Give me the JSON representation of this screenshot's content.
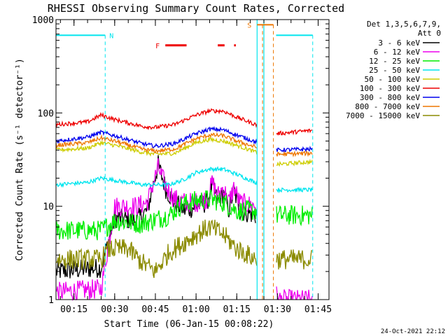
{
  "chart_data": {
    "type": "line",
    "title": "RHESSI Observing Summary Count Rates, Corrected",
    "xlabel": "Start Time (06-Jan-15 00:08:22)",
    "ylabel": "Corrected Count Rate (s⁻¹ detector⁻¹)",
    "y_scale": "log",
    "xlim": [
      "00:08:22",
      "01:49:00"
    ],
    "ylim": [
      1,
      1000
    ],
    "x_ticks": [
      "00:15",
      "00:30",
      "00:45",
      "01:00",
      "01:15",
      "01:30",
      "01:45"
    ],
    "y_ticks": [
      "1",
      "10",
      "100",
      "1000"
    ],
    "footer_date": "24-Oct-2021 22:12",
    "legend": {
      "header_line1": "Det 1,3,5,6,7,9,",
      "header_line2": "Att 0",
      "placement": "right-outside"
    },
    "flags": [
      {
        "label": "N",
        "color": "#00e5ee",
        "segments": [
          [
            "00:08:22",
            "00:26:30"
          ],
          [
            "01:29:30",
            "01:43:00"
          ]
        ],
        "level": 680,
        "vlines": [
          "00:26:30",
          "01:43:00"
        ]
      },
      {
        "label": "F",
        "color": "#ee0000",
        "segments": [
          [
            "00:48:40",
            "00:56:30"
          ],
          [
            "01:08:00",
            "01:10:30"
          ],
          [
            "01:14:00",
            "01:14:40"
          ]
        ],
        "level": 530
      },
      {
        "label": "S",
        "color": "#ee7600",
        "segments": [
          [
            "01:22:30",
            "01:28:30"
          ]
        ],
        "level": 880,
        "vlines": [
          "01:24:30",
          "01:28:30"
        ]
      }
    ],
    "data_gaps": [
      [
        "01:22:30",
        "01:29:30"
      ]
    ],
    "saa_lines": [
      "01:22:30",
      "01:25:00"
    ],
    "series": [
      {
        "name": "3 - 6 keV",
        "color": "#000000",
        "x": [
          "00:08:22",
          "00:25:00",
          "00:30:00",
          "00:38:00",
          "00:42:00",
          "00:46:00",
          "00:49:00",
          "00:52:00",
          "00:56:00",
          "01:00:00",
          "01:04:00",
          "01:06:00",
          "01:08:00",
          "01:10:00",
          "01:12:00",
          "01:14:00",
          "01:16:00",
          "01:22:00"
        ],
        "values": [
          2.0,
          2.2,
          7.5,
          7.0,
          9.0,
          28,
          15,
          11,
          9,
          10,
          11,
          17,
          11,
          14,
          9,
          15,
          9,
          8
        ]
      },
      {
        "name": "6 - 12 keV",
        "color": "#ee00ee",
        "x": [
          "00:08:22",
          "00:25:00",
          "00:30:00",
          "00:38:00",
          "00:42:00",
          "00:46:00",
          "00:49:00",
          "00:52:00",
          "00:56:00",
          "01:00:00",
          "01:04:00",
          "01:06:00",
          "01:08:00",
          "01:10:00",
          "01:12:00",
          "01:14:00",
          "01:16:00",
          "01:22:00",
          "01:30:00",
          "01:43:00"
        ],
        "values": [
          1.2,
          1.3,
          10,
          10,
          11,
          26,
          16,
          12,
          11,
          11,
          12,
          18,
          13,
          16,
          11,
          16,
          11,
          10,
          1.0,
          1.0
        ]
      },
      {
        "name": "12 - 25 keV",
        "color": "#00ee00",
        "x": [
          "00:08:22",
          "00:25:00",
          "00:30:00",
          "00:40:00",
          "00:50:00",
          "00:55:00",
          "01:00:00",
          "01:05:00",
          "01:10:00",
          "01:15:00",
          "01:22:00",
          "01:29:30",
          "01:43:00"
        ],
        "values": [
          5.5,
          5.5,
          7.0,
          6.5,
          8.0,
          10.5,
          11.5,
          12.0,
          11.0,
          9.0,
          9.0,
          8.0,
          8.0
        ]
      },
      {
        "name": "25 - 50 keV",
        "color": "#00e5ee",
        "x": [
          "00:08:22",
          "00:20:00",
          "00:25:00",
          "00:30:00",
          "00:40:00",
          "00:50:00",
          "00:55:00",
          "01:00:00",
          "01:05:00",
          "01:10:00",
          "01:15:00",
          "01:22:00",
          "01:29:30",
          "01:43:00"
        ],
        "values": [
          17,
          18,
          20,
          19,
          17,
          17,
          19,
          23,
          25,
          25,
          22,
          18,
          15,
          15
        ]
      },
      {
        "name": "50 - 100 keV",
        "color": "#cdcd00",
        "x": [
          "00:08:22",
          "00:20:00",
          "00:25:00",
          "00:30:00",
          "00:40:00",
          "00:45:00",
          "00:52:00",
          "01:00:00",
          "01:05:00",
          "01:10:00",
          "01:15:00",
          "01:22:00",
          "01:29:30",
          "01:43:00"
        ],
        "values": [
          40,
          42,
          48,
          45,
          38,
          36,
          37,
          48,
          52,
          50,
          45,
          38,
          28,
          30
        ]
      },
      {
        "name": "100 - 300 keV",
        "color": "#ee0000",
        "x": [
          "00:08:22",
          "00:20:00",
          "00:25:00",
          "00:30:00",
          "00:40:00",
          "00:45:00",
          "00:52:00",
          "01:00:00",
          "01:05:00",
          "01:10:00",
          "01:15:00",
          "01:22:00",
          "01:29:30",
          "01:43:00"
        ],
        "values": [
          75,
          80,
          95,
          85,
          72,
          70,
          75,
          95,
          105,
          105,
          90,
          75,
          60,
          65
        ]
      },
      {
        "name": "300 - 800 keV",
        "color": "#0000ee",
        "x": [
          "00:08:22",
          "00:20:00",
          "00:25:00",
          "00:30:00",
          "00:40:00",
          "00:45:00",
          "00:52:00",
          "01:00:00",
          "01:05:00",
          "01:10:00",
          "01:15:00",
          "01:22:00",
          "01:29:30",
          "01:43:00"
        ],
        "values": [
          50,
          55,
          62,
          57,
          47,
          44,
          47,
          60,
          67,
          66,
          58,
          49,
          40,
          41
        ]
      },
      {
        "name": "800 - 7000 keV",
        "color": "#ee7600",
        "x": [
          "00:08:22",
          "00:20:00",
          "00:25:00",
          "00:30:00",
          "00:40:00",
          "00:45:00",
          "00:52:00",
          "01:00:00",
          "01:05:00",
          "01:10:00",
          "01:15:00",
          "01:22:00",
          "01:29:30",
          "01:43:00"
        ],
        "values": [
          45,
          48,
          54,
          50,
          41,
          39,
          41,
          53,
          58,
          57,
          50,
          43,
          36,
          37
        ]
      },
      {
        "name": "7000 - 15000 keV",
        "color": "#8b8b00",
        "x": [
          "00:08:22",
          "00:25:00",
          "00:28:00",
          "00:35:00",
          "00:40:00",
          "00:45:00",
          "00:50:00",
          "00:55:00",
          "01:00:00",
          "01:05:00",
          "01:10:00",
          "01:15:00",
          "01:22:00",
          "01:29:30",
          "01:43:00"
        ],
        "values": [
          2.7,
          2.7,
          3.5,
          3.5,
          2.5,
          2.0,
          3.2,
          4.0,
          5.0,
          6.0,
          5.0,
          3.5,
          2.7,
          2.7,
          2.7
        ]
      }
    ]
  }
}
